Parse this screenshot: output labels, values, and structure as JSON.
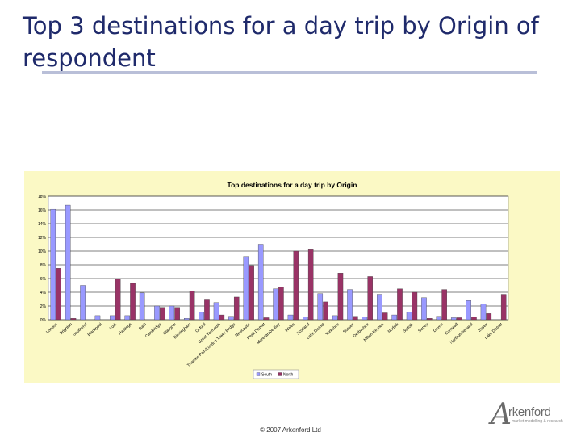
{
  "slide": {
    "title": "Top 3 destinations for a day trip by Origin of respondent",
    "footer": "© 2007 Arkenford Ltd",
    "logo": {
      "mark": "A",
      "name": "rkenford",
      "tagline": "market modelling & research"
    }
  },
  "colors": {
    "title": "#1f2a6b",
    "rule": "#b9bfd8",
    "chart_background": "#fbf9c5",
    "south": "#9999ff",
    "north": "#993366"
  },
  "chart_data": {
    "type": "bar",
    "title": "Top destinations for a day trip by Origin",
    "xlabel": "",
    "ylabel": "",
    "ylim": [
      0,
      18
    ],
    "yticks": [
      "0%",
      "2%",
      "4%",
      "6%",
      "8%",
      "10%",
      "12%",
      "14%",
      "16%",
      "18%"
    ],
    "y_unit": "%",
    "grid": true,
    "legend": "bottom",
    "categories": [
      "London",
      "Brighton",
      "Southend",
      "Blackpool",
      "York",
      "Hastings",
      "Bath",
      "Cambridge",
      "Glasgow",
      "Birmingham",
      "Oxford",
      "Great Yarmouth",
      "Thames Path/London Tower Bridge",
      "Newcastle",
      "Peak District",
      "Morecambe Bay",
      "Wales",
      "Scotland",
      "Lake District",
      "Yorkshire",
      "Sussex",
      "Derbyshire",
      "Milton Keynes",
      "Norfolk",
      "Suffolk",
      "Surrey",
      "Devon",
      "Cornwall",
      "Northumberland",
      "Essex",
      "Lake District"
    ],
    "series": [
      {
        "name": "South",
        "values": [
          16.1,
          16.7,
          5.0,
          0.6,
          0.6,
          0.6,
          3.9,
          2.0,
          2.0,
          0.2,
          1.1,
          2.5,
          0.5,
          9.2,
          11.0,
          4.5,
          0.7,
          0.4,
          3.8,
          0.6,
          4.4,
          0.4,
          3.7,
          0.7,
          1.1,
          3.2,
          0.5,
          0.3,
          2.8,
          2.3,
          0.0
        ]
      },
      {
        "name": "North",
        "values": [
          7.5,
          0.2,
          0.0,
          0.0,
          5.9,
          5.3,
          0.0,
          1.8,
          1.8,
          4.2,
          3.0,
          0.7,
          3.3,
          7.9,
          0.3,
          4.8,
          10.0,
          10.2,
          2.6,
          6.8,
          0.5,
          6.3,
          1.0,
          4.5,
          4.0,
          0.2,
          4.4,
          0.3,
          0.4,
          0.9,
          3.7
        ]
      }
    ]
  }
}
